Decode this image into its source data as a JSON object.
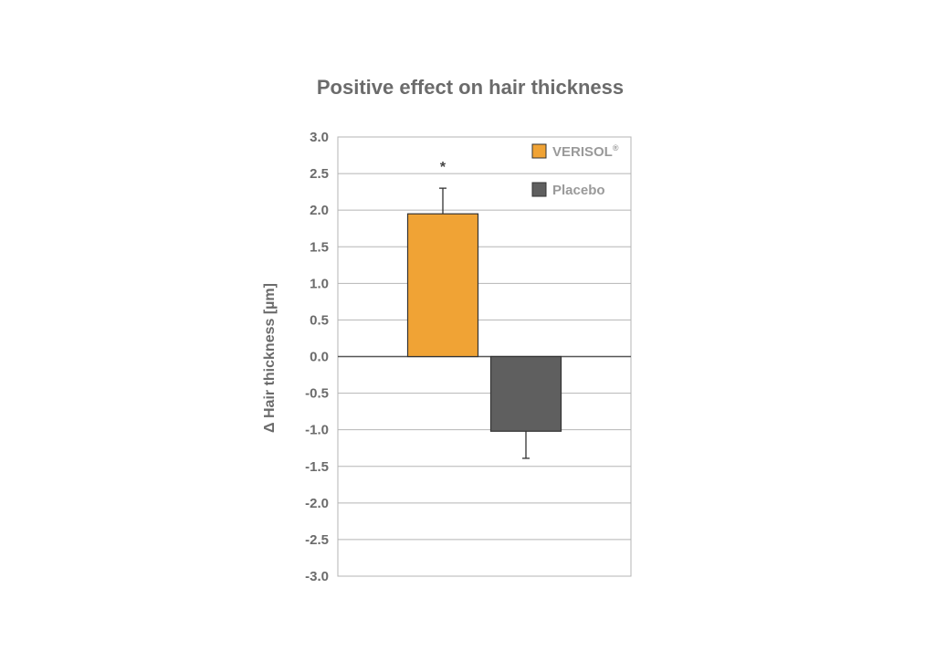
{
  "chart_data": {
    "type": "bar",
    "title": "Positive effect on hair thickness",
    "ylabel": "Δ Hair thickness [µm]",
    "xlabel": "",
    "ylim": [
      -3.0,
      3.0
    ],
    "yticks": [
      "3.0",
      "2.5",
      "2.0",
      "1.5",
      "1.0",
      "0.5",
      "0.0",
      "-0.5",
      "-1.0",
      "-1.5",
      "-2.0",
      "-2.5",
      "-3.0"
    ],
    "grid": true,
    "legend_position": "top-right",
    "series": [
      {
        "name": "VERISOL",
        "name_mark": "®",
        "value": 1.95,
        "error": 0.35,
        "color": "#f0a335",
        "annotation": "*"
      },
      {
        "name": "Placebo",
        "name_mark": "",
        "value": -1.02,
        "error": 0.37,
        "color": "#5f5f5f",
        "annotation": ""
      }
    ]
  }
}
